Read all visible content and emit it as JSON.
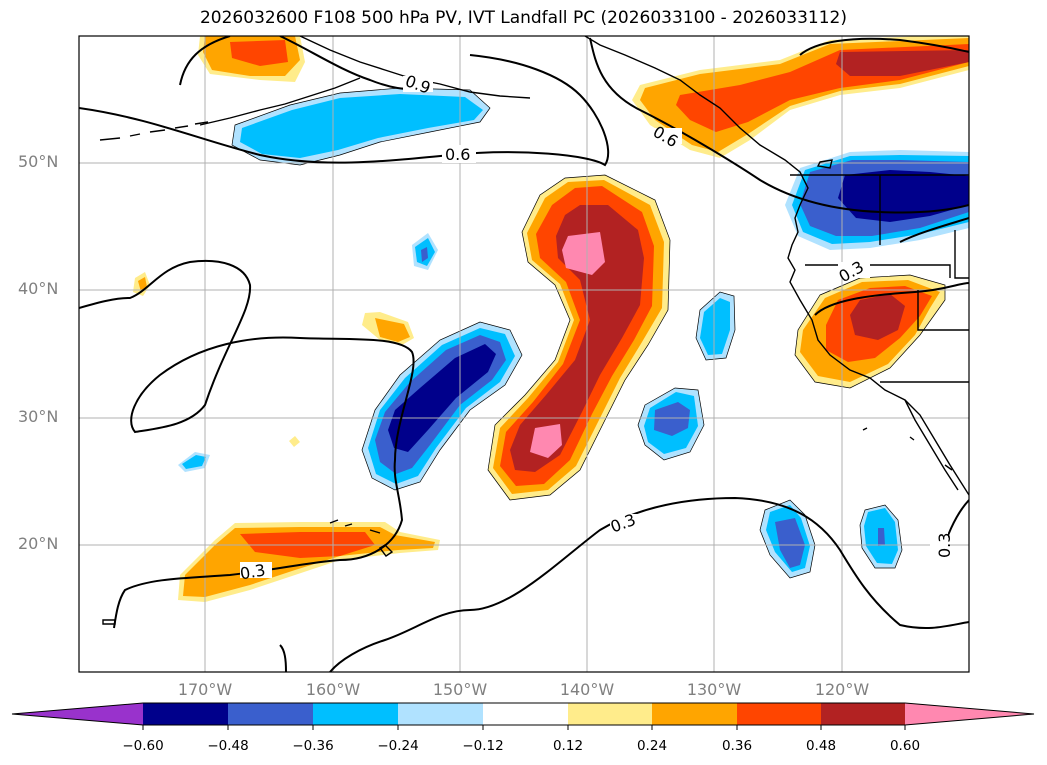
{
  "title": "2026032600 F108 500 hPa PV, IVT Landfall PC (2026033100 - 2026033112)",
  "longitude_ticks": [
    "170°W",
    "160°W",
    "150°W",
    "140°W",
    "130°W",
    "120°W"
  ],
  "latitude_ticks": [
    "50°N",
    "40°N",
    "30°N",
    "20°N"
  ],
  "contour_labels": [
    "0.9",
    "0.6",
    "0.6",
    "0.3",
    "0.3",
    "0.3",
    "0.3"
  ],
  "colorbar": {
    "tick_labels": [
      "−0.60",
      "−0.48",
      "−0.36",
      "−0.24",
      "−0.12",
      "0.12",
      "0.24",
      "0.36",
      "0.48",
      "0.60"
    ],
    "colors": [
      "#9932cc",
      "#00008b",
      "#3a5fcd",
      "#00bfff",
      "#b0e2ff",
      "#ffffff",
      "#ffec8b",
      "#ffa500",
      "#ff4500",
      "#b22222",
      "#ff88b0"
    ]
  },
  "colors": {
    "coastline": "#000000",
    "grid": "#b0b0b0",
    "tick_text": "#808080"
  }
}
